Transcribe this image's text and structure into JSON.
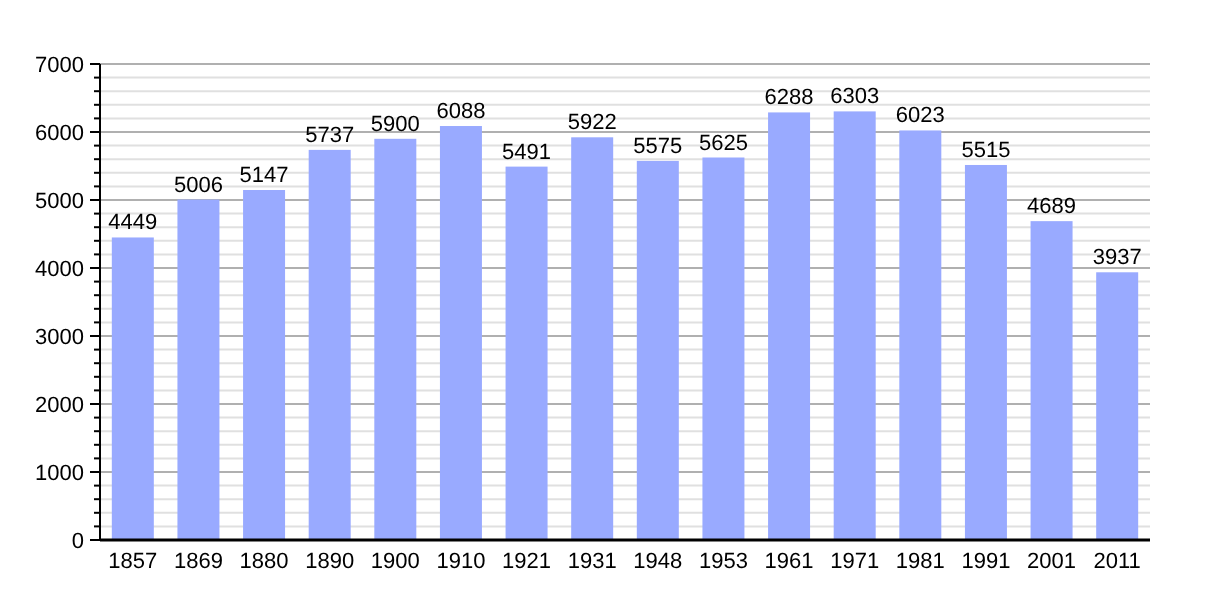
{
  "chart_data": {
    "type": "bar",
    "categories": [
      "1857",
      "1869",
      "1880",
      "1890",
      "1900",
      "1910",
      "1921",
      "1931",
      "1948",
      "1953",
      "1961",
      "1971",
      "1981",
      "1991",
      "2001",
      "2011"
    ],
    "values": [
      4449,
      5006,
      5147,
      5737,
      5900,
      6088,
      5491,
      5922,
      5575,
      5625,
      6288,
      6303,
      6023,
      5515,
      4689,
      3937
    ],
    "color": "#99aaff",
    "data_labels": true,
    "grid": "y",
    "ylim": [
      0,
      7000
    ],
    "yticks": [
      0,
      {
        "value": 200,
        "label": null
      },
      {
        "value": 400,
        "label": null
      },
      {
        "value": 600,
        "label": null
      },
      {
        "value": 800,
        "label": null
      },
      1000,
      {
        "value": 1200,
        "label": null
      },
      {
        "value": 1400,
        "label": null
      },
      {
        "value": 1600,
        "label": null
      },
      {
        "value": 1800,
        "label": null
      },
      2000,
      {
        "value": 2200,
        "label": null
      },
      {
        "value": 2400,
        "label": null
      },
      {
        "value": 2600,
        "label": null
      },
      {
        "value": 2800,
        "label": null
      },
      3000,
      {
        "value": 3200,
        "label": null
      },
      {
        "value": 3400,
        "label": null
      },
      {
        "value": 3600,
        "label": null
      },
      {
        "value": 3800,
        "label": null
      },
      4000,
      {
        "value": 4200,
        "label": null
      },
      {
        "value": 4400,
        "label": null
      },
      {
        "value": 4600,
        "label": null
      },
      {
        "value": 4800,
        "label": null
      },
      5000,
      {
        "value": 5200,
        "label": null
      },
      {
        "value": 5400,
        "label": null
      },
      {
        "value": 5600,
        "label": null
      },
      {
        "value": 5800,
        "label": null
      },
      6000,
      {
        "value": 6200,
        "label": null
      },
      {
        "value": 6400,
        "label": null
      },
      {
        "value": 6600,
        "label": null
      },
      {
        "value": 6800,
        "label": null
      },
      7000
    ]
  }
}
